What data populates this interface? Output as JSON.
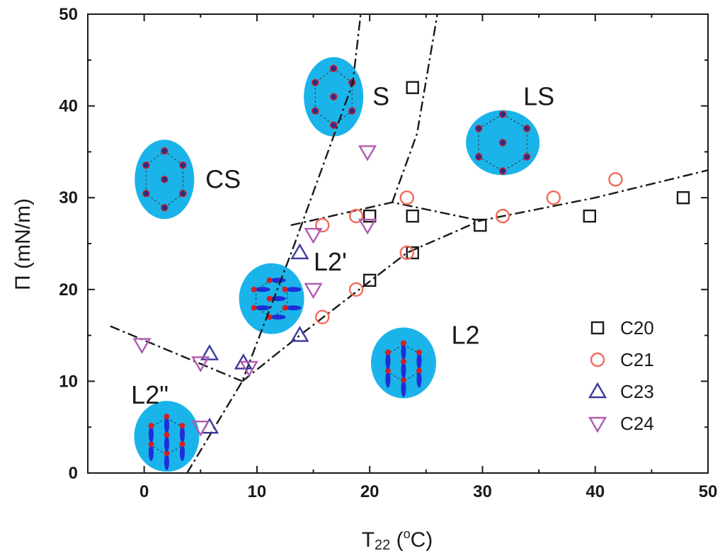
{
  "chart_data": {
    "type": "scatter",
    "xlabel_main": "T",
    "xlabel_sub": "22",
    "xlabel_unit_open": " (",
    "xlabel_unit_sup": "o",
    "xlabel_unit_close": "C)",
    "ylabel": "Π (mN/m)",
    "xlim": [
      -5,
      50
    ],
    "ylim": [
      0,
      50
    ],
    "x_ticks": [
      0,
      10,
      20,
      30,
      40,
      50
    ],
    "y_ticks": [
      0,
      10,
      20,
      30,
      40,
      50
    ],
    "grid": false,
    "legend_position": "bottom-right",
    "series": [
      {
        "name": "C20",
        "marker": "square",
        "color": "#1a1a1a",
        "points": [
          [
            23.8,
            42
          ],
          [
            23.8,
            28
          ],
          [
            23.8,
            24
          ],
          [
            20,
            21
          ],
          [
            20,
            28
          ],
          [
            29.8,
            27
          ],
          [
            39.5,
            28
          ],
          [
            47.8,
            30
          ]
        ]
      },
      {
        "name": "C21",
        "marker": "circle",
        "color": "#f26b5b",
        "points": [
          [
            15.8,
            27
          ],
          [
            18.8,
            28
          ],
          [
            23.3,
            30
          ],
          [
            18.8,
            20
          ],
          [
            15.8,
            17
          ],
          [
            23.3,
            24
          ],
          [
            31.8,
            28
          ],
          [
            36.3,
            30
          ],
          [
            41.8,
            32
          ]
        ]
      },
      {
        "name": "C23",
        "marker": "triangle-up",
        "color": "#3a3a9a",
        "points": [
          [
            13.8,
            24
          ],
          [
            5.8,
            13
          ],
          [
            8.8,
            12
          ],
          [
            13.8,
            15
          ],
          [
            5.8,
            5
          ]
        ]
      },
      {
        "name": "C24",
        "marker": "triangle-down",
        "color": "#b05ab0",
        "points": [
          [
            -0.2,
            14
          ],
          [
            15,
            26
          ],
          [
            15,
            20
          ],
          [
            19.8,
            35
          ],
          [
            19.8,
            27
          ],
          [
            5,
            12
          ],
          [
            9.3,
            11.5
          ],
          [
            5,
            5
          ]
        ]
      }
    ],
    "boundaries": [
      [
        [
          3.8,
          0
        ],
        [
          8.7,
          10
        ],
        [
          13.2,
          24.5
        ],
        [
          16.3,
          35
        ],
        [
          18.5,
          42.5
        ],
        [
          19.2,
          50
        ]
      ],
      [
        [
          -3,
          16
        ],
        [
          8.7,
          10
        ]
      ],
      [
        [
          8.7,
          10
        ],
        [
          13.8,
          15
        ],
        [
          23.3,
          24
        ],
        [
          29.8,
          27.5
        ]
      ],
      [
        [
          13,
          27
        ],
        [
          22,
          29.5
        ],
        [
          29.8,
          27.5
        ],
        [
          40,
          30
        ],
        [
          50,
          33
        ]
      ],
      [
        [
          22,
          29.5
        ],
        [
          24.2,
          37
        ],
        [
          26,
          50
        ]
      ]
    ],
    "regions": [
      {
        "label": "CS",
        "x": 7,
        "y": 32,
        "icon": "hex-dots"
      },
      {
        "label": "S",
        "x": 21,
        "y": 41,
        "icon": "hex-dots"
      },
      {
        "label": "LS",
        "x": 35,
        "y": 41,
        "icon": "hex-dots-centered"
      },
      {
        "label": "L2'",
        "x": 16.5,
        "y": 23,
        "icon": "tilted-molecules"
      },
      {
        "label": "L2",
        "x": 28.5,
        "y": 15,
        "icon": "upright-molecules"
      },
      {
        "label": "L2\"",
        "x": 0.5,
        "y": 8.5,
        "icon": "upright-molecules"
      }
    ],
    "icon_positions": [
      {
        "label": "CS",
        "x": 1.8,
        "y": 32
      },
      {
        "label": "S",
        "x": 16.8,
        "y": 41
      },
      {
        "label": "LS",
        "x": 31.8,
        "y": 36
      },
      {
        "label": "L2'",
        "x": 11.3,
        "y": 19
      },
      {
        "label": "L2",
        "x": 23,
        "y": 12
      },
      {
        "label": "L2\"",
        "x": 2,
        "y": 4
      }
    ]
  }
}
